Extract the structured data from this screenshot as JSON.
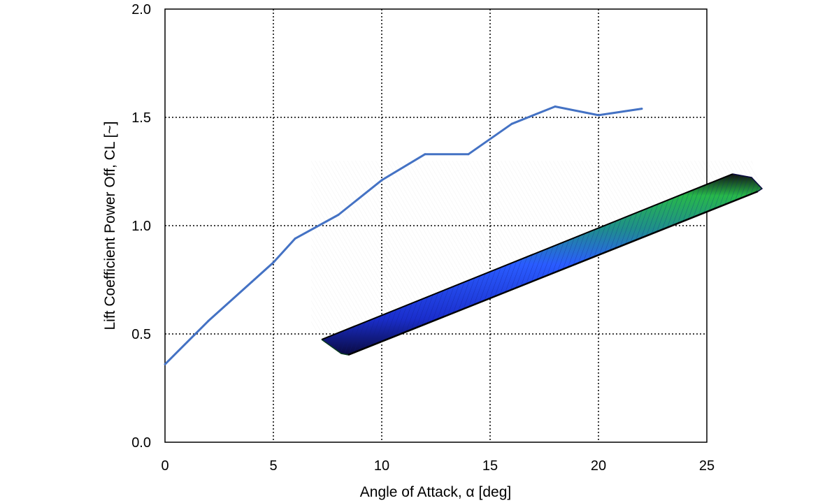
{
  "chart_data": {
    "type": "line",
    "xlabel": "Angle of Attack, α [deg]",
    "ylabel": "Lift Coefficient Power Off, CL [~]",
    "xlim": [
      0,
      25
    ],
    "ylim": [
      0.0,
      2.0
    ],
    "x_ticks": [
      0,
      5,
      10,
      15,
      20,
      25
    ],
    "y_ticks": [
      0.0,
      0.5,
      1.0,
      1.5,
      2.0
    ],
    "x_tick_labels": [
      "0",
      "5",
      "10",
      "15",
      "20",
      "25"
    ],
    "y_tick_labels": [
      "0.0",
      "0.5",
      "1.0",
      "1.5",
      "2.0"
    ],
    "grid": true,
    "grid_style": "dotted",
    "series": [
      {
        "color": "#4472C4",
        "x": [
          0,
          2,
          4,
          5,
          6,
          8,
          10,
          12,
          14,
          16,
          18,
          20,
          22
        ],
        "y": [
          0.36,
          0.56,
          0.74,
          0.83,
          0.94,
          1.05,
          1.21,
          1.33,
          1.33,
          1.47,
          1.55,
          1.51,
          1.54
        ]
      }
    ],
    "overlay": {
      "description_icon": "wing-mesh-image",
      "colors": [
        "#1a2ecc",
        "#2a5cff",
        "#27b84a",
        "#0a0a0a"
      ]
    }
  }
}
